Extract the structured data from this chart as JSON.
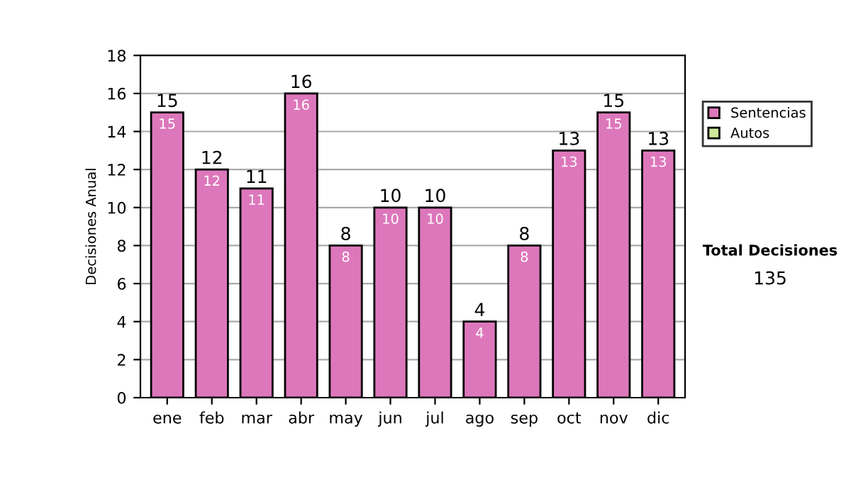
{
  "chart_data": {
    "type": "bar",
    "stacked": true,
    "ylabel": "Decisiones Anual",
    "categories": [
      "ene",
      "feb",
      "mar",
      "abr",
      "may",
      "jun",
      "jul",
      "ago",
      "sep",
      "oct",
      "nov",
      "dic"
    ],
    "series": [
      {
        "name": "Sentencias",
        "color": "#dd77bb",
        "values": [
          15,
          12,
          11,
          16,
          8,
          10,
          10,
          4,
          8,
          13,
          15,
          13
        ],
        "value_labels": [
          "15",
          "12",
          "11",
          "16",
          "8",
          "10",
          "10",
          "4",
          "8",
          "13",
          "15",
          "13"
        ]
      },
      {
        "name": "Autos",
        "color": "#cce899",
        "values": [
          null,
          null,
          null,
          null,
          null,
          null,
          null,
          null,
          null,
          null,
          null,
          null
        ]
      }
    ],
    "totals": [
      "15",
      "12",
      "11",
      "16",
      "8",
      "10",
      "10",
      "4",
      "8",
      "13",
      "15",
      "13"
    ],
    "ylim": [
      0,
      18
    ],
    "yticks": [
      0,
      2,
      4,
      6,
      8,
      10,
      12,
      14,
      16,
      18
    ],
    "grid": "y",
    "legend": "right",
    "annotations": [
      "Total Decisiones",
      "135"
    ]
  }
}
